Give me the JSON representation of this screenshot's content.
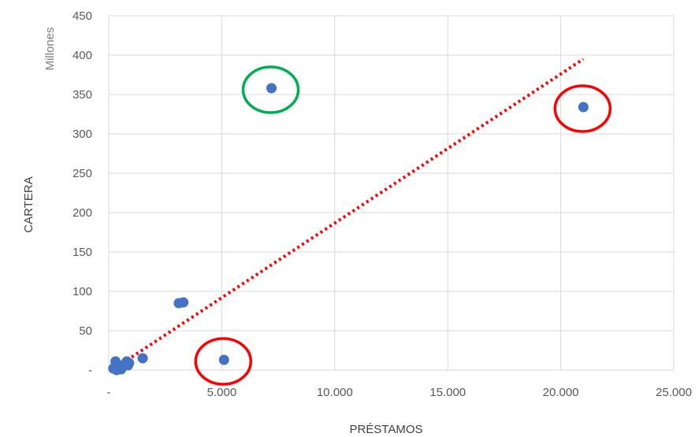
{
  "chart_data": {
    "type": "scatter",
    "title": "",
    "xlabel": "PRÉSTAMOS",
    "ylabel": "CARTERA",
    "y_unit_label": "Millones",
    "xlim": [
      0,
      25000
    ],
    "ylim": [
      0,
      450
    ],
    "x_ticks": [
      0,
      5000,
      10000,
      15000,
      20000,
      25000
    ],
    "x_tick_labels": [
      "-",
      "5.000",
      "10.000",
      "15.000",
      "20.000",
      "25.000"
    ],
    "y_ticks": [
      0,
      50,
      100,
      150,
      200,
      250,
      300,
      350,
      400,
      450
    ],
    "y_tick_labels": [
      "-",
      "50",
      "100",
      "150",
      "200",
      "250",
      "300",
      "350",
      "400",
      "450"
    ],
    "grid": true,
    "legend": "none",
    "point_color": "#4472c4",
    "points": [
      {
        "x": 300,
        "y": 11
      },
      {
        "x": 200,
        "y": 2
      },
      {
        "x": 350,
        "y": 0
      },
      {
        "x": 450,
        "y": 4
      },
      {
        "x": 550,
        "y": 1
      },
      {
        "x": 600,
        "y": 6
      },
      {
        "x": 750,
        "y": 8
      },
      {
        "x": 800,
        "y": 11
      },
      {
        "x": 850,
        "y": 6
      },
      {
        "x": 900,
        "y": 9
      },
      {
        "x": 1500,
        "y": 15
      },
      {
        "x": 3100,
        "y": 85
      },
      {
        "x": 3300,
        "y": 86
      },
      {
        "x": 5100,
        "y": 13
      },
      {
        "x": 7200,
        "y": 358
      },
      {
        "x": 21000,
        "y": 334
      }
    ],
    "trendline": {
      "style": "dotted",
      "color": "#ff0000",
      "from": {
        "x": 200,
        "y": 1
      },
      "to": {
        "x": 21000,
        "y": 395
      }
    },
    "highlights": [
      {
        "x": 7200,
        "y": 358,
        "color": "#00b050"
      },
      {
        "x": 21000,
        "y": 334,
        "color": "#ff0000"
      },
      {
        "x": 5100,
        "y": 13,
        "color": "#ff0000"
      }
    ],
    "colors": {
      "gridline": "#d9d9d9",
      "tick_text": "#595959"
    }
  }
}
